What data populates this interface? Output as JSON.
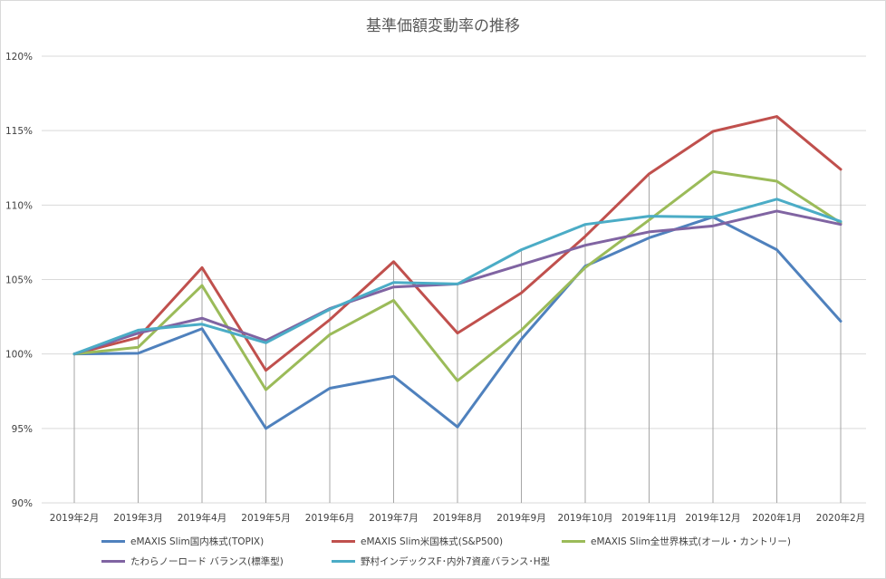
{
  "chart_data": {
    "type": "line",
    "title": "基準価額変動率の推移",
    "xlabel": "",
    "ylabel": "",
    "categories": [
      "2019年2月",
      "2019年3月",
      "2019年4月",
      "2019年5月",
      "2019年6月",
      "2019年7月",
      "2019年8月",
      "2019年9月",
      "2019年10月",
      "2019年11月",
      "2019年12月",
      "2020年1月",
      "2020年2月"
    ],
    "ylim": [
      90,
      120
    ],
    "yticks": [
      90,
      95,
      100,
      105,
      110,
      115,
      120
    ],
    "ytick_labels": [
      "90%",
      "95%",
      "100%",
      "105%",
      "110%",
      "115%",
      "120%"
    ],
    "grid": "horizontal",
    "drop_lines": true,
    "legend_position": "bottom",
    "series": [
      {
        "name": "eMAXIS Slim国内株式(TOPIX)",
        "color": "#4F81BD",
        "values": [
          100.0,
          100.05,
          101.7,
          95.0,
          97.7,
          98.5,
          95.1,
          101.0,
          105.9,
          107.8,
          109.2,
          107.0,
          102.2
        ]
      },
      {
        "name": "eMAXIS Slim米国株式(S&P500)",
        "color": "#C0504D",
        "values": [
          100.0,
          101.1,
          105.8,
          98.9,
          102.3,
          106.2,
          101.4,
          104.1,
          107.9,
          112.1,
          114.95,
          115.95,
          112.4
        ]
      },
      {
        "name": "eMAXIS Slim全世界株式(オール・カントリー)",
        "color": "#9BBB59",
        "values": [
          100.0,
          100.45,
          104.6,
          97.6,
          101.3,
          103.6,
          98.2,
          101.6,
          105.8,
          109.0,
          112.25,
          111.6,
          108.8
        ]
      },
      {
        "name": "たわらノーロード バランス(標準型)",
        "color": "#8064A2",
        "values": [
          100.0,
          101.4,
          102.4,
          100.9,
          103.05,
          104.5,
          104.7,
          106.0,
          107.3,
          108.2,
          108.6,
          109.6,
          108.7
        ]
      },
      {
        "name": "野村インデックスF･内外7資産バランス･H型",
        "color": "#4BACC6",
        "values": [
          100.0,
          101.6,
          102.0,
          100.75,
          103.0,
          104.8,
          104.7,
          107.0,
          108.7,
          109.25,
          109.2,
          110.4,
          108.9
        ]
      }
    ]
  }
}
